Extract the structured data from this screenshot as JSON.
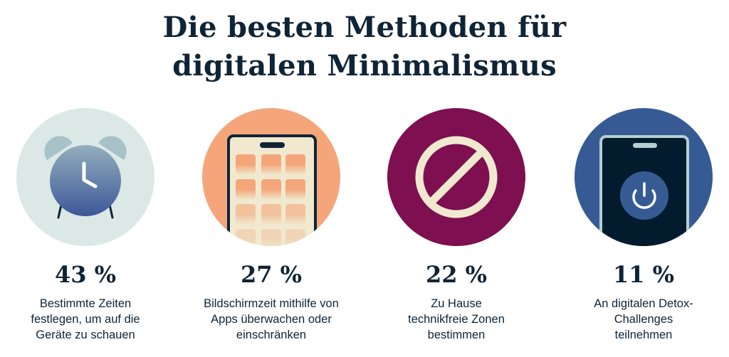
{
  "title": {
    "line1": "Die besten Methoden für",
    "line2": "digitalen Minimalismus"
  },
  "items": [
    {
      "percent": "43 %",
      "icon": "alarm-clock-icon",
      "circle_color": "#dbe8e6",
      "description": [
        "Bestimmte Zeiten",
        "festlegen, um auf die",
        "Geräte zu schauen"
      ]
    },
    {
      "percent": "27 %",
      "icon": "smartphone-apps-icon",
      "circle_color": "#f4a67a",
      "description": [
        "Bildschirmzeit mithilfe von",
        "Apps überwachen oder",
        "einschränken"
      ]
    },
    {
      "percent": "22 %",
      "icon": "prohibited-icon",
      "circle_color": "#7e0f50",
      "description": [
        "Zu Hause",
        "technikfreie Zonen",
        "bestimmen"
      ]
    },
    {
      "percent": "11 %",
      "icon": "phone-power-icon",
      "circle_color": "#365b94",
      "description": [
        "An digitalen Detox-",
        "Challenges",
        "teilnehmen"
      ]
    }
  ]
}
